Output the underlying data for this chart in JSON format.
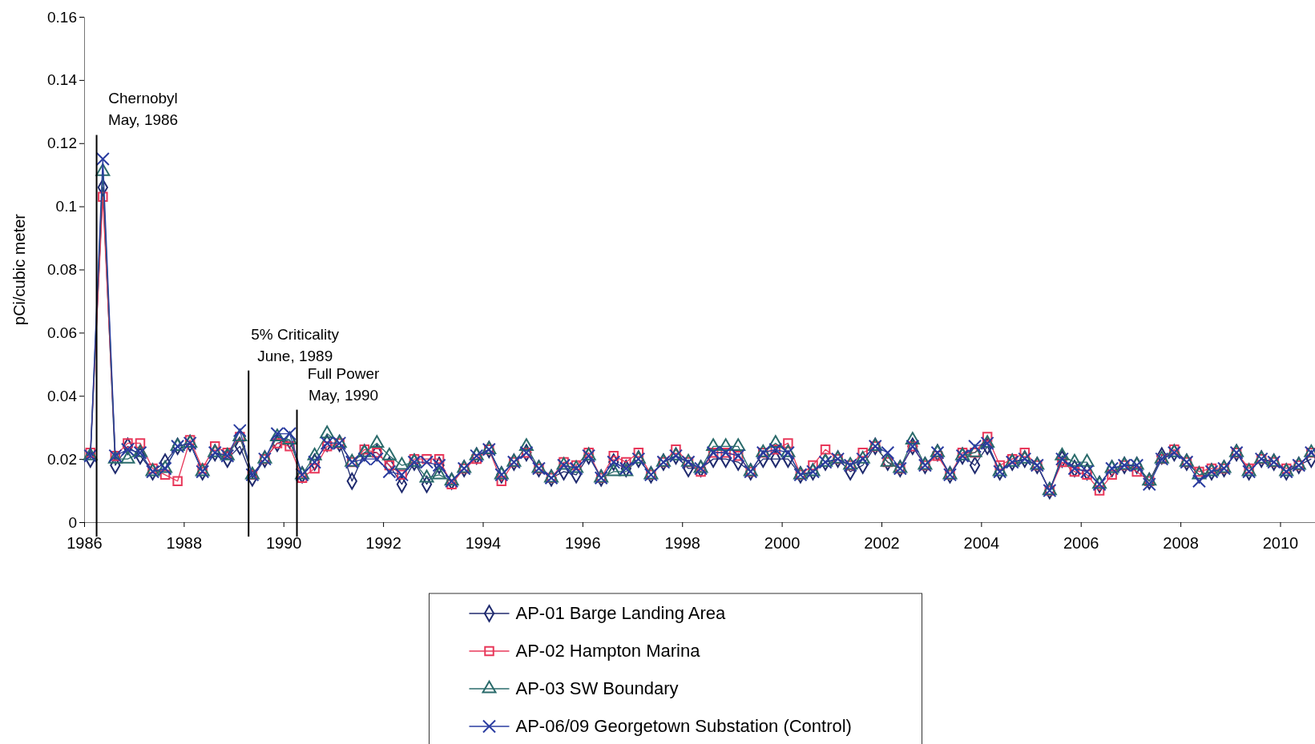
{
  "chart_data": {
    "type": "line",
    "ylabel": "pCi/cubic meter",
    "x": [
      1986.125,
      1986.375,
      1986.625,
      1986.875,
      1987.125,
      1987.375,
      1987.625,
      1987.875,
      1988.125,
      1988.375,
      1988.625,
      1988.875,
      1989.125,
      1989.375,
      1989.625,
      1989.875,
      1990.125,
      1990.375,
      1990.625,
      1990.875,
      1991.125,
      1991.375,
      1991.625,
      1991.875,
      1992.125,
      1992.375,
      1992.625,
      1992.875,
      1993.125,
      1993.375,
      1993.625,
      1993.875,
      1994.125,
      1994.375,
      1994.625,
      1994.875,
      1995.125,
      1995.375,
      1995.625,
      1995.875,
      1996.125,
      1996.375,
      1996.625,
      1996.875,
      1997.125,
      1997.375,
      1997.625,
      1997.875,
      1998.125,
      1998.375,
      1998.625,
      1998.875,
      1999.125,
      1999.375,
      1999.625,
      1999.875,
      2000.125,
      2000.375,
      2000.625,
      2000.875,
      2001.125,
      2001.375,
      2001.625,
      2001.875,
      2002.125,
      2002.375,
      2002.625,
      2002.875,
      2003.125,
      2003.375,
      2003.625,
      2003.875,
      2004.125,
      2004.375,
      2004.625,
      2004.875,
      2005.125,
      2005.375,
      2005.625,
      2005.875,
      2006.125,
      2006.375,
      2006.625,
      2006.875,
      2007.125,
      2007.375,
      2007.625,
      2007.875,
      2008.125,
      2008.375,
      2008.625,
      2008.875,
      2009.125,
      2009.375,
      2009.625,
      2009.875,
      2010.125,
      2010.375,
      2010.625
    ],
    "series": [
      {
        "name": "AP-01 Barge Landing Area",
        "color": "#1f2a6e",
        "marker": "diamond",
        "values": [
          0.02,
          0.106,
          0.018,
          0.024,
          0.021,
          0.016,
          0.019,
          0.024,
          0.025,
          0.016,
          0.022,
          0.02,
          0.024,
          0.014,
          0.02,
          0.025,
          0.026,
          0.015,
          0.019,
          0.025,
          0.025,
          0.013,
          0.022,
          0.022,
          0.018,
          0.012,
          0.019,
          0.012,
          0.018,
          0.013,
          0.017,
          0.021,
          0.023,
          0.015,
          0.019,
          0.022,
          0.017,
          0.014,
          0.016,
          0.015,
          0.021,
          0.014,
          0.019,
          0.017,
          0.02,
          0.015,
          0.019,
          0.021,
          0.017,
          0.017,
          0.02,
          0.02,
          0.019,
          0.016,
          0.02,
          0.02,
          0.02,
          0.015,
          0.016,
          0.019,
          0.02,
          0.016,
          0.018,
          0.024,
          0.019,
          0.017,
          0.024,
          0.018,
          0.022,
          0.015,
          0.021,
          0.018,
          0.024,
          0.016,
          0.019,
          0.02,
          0.018,
          0.01,
          0.02,
          0.017,
          0.016,
          0.012,
          0.017,
          0.018,
          0.018,
          0.013,
          0.021,
          0.022,
          0.019,
          0.015,
          0.016,
          0.017,
          0.022,
          0.016,
          0.02,
          0.019,
          0.016,
          0.018,
          0.02
        ]
      },
      {
        "name": "AP-02 Hampton Marina",
        "color": "#e8385a",
        "marker": "square",
        "values": [
          0.022,
          0.103,
          0.021,
          0.025,
          0.025,
          0.017,
          0.015,
          0.013,
          0.026,
          0.017,
          0.024,
          0.022,
          0.027,
          0.015,
          0.02,
          0.025,
          0.024,
          0.014,
          0.017,
          0.024,
          0.025,
          0.019,
          0.023,
          0.022,
          0.018,
          0.015,
          0.02,
          0.02,
          0.02,
          0.012,
          0.017,
          0.02,
          0.023,
          0.013,
          0.019,
          0.022,
          0.017,
          0.014,
          0.019,
          0.018,
          0.022,
          0.014,
          0.021,
          0.019,
          0.022,
          0.015,
          0.019,
          0.023,
          0.019,
          0.016,
          0.022,
          0.022,
          0.021,
          0.016,
          0.022,
          0.023,
          0.025,
          0.015,
          0.018,
          0.023,
          0.02,
          0.018,
          0.022,
          0.024,
          0.019,
          0.017,
          0.024,
          0.018,
          0.021,
          0.015,
          0.022,
          0.022,
          0.027,
          0.018,
          0.02,
          0.022,
          0.018,
          0.01,
          0.019,
          0.016,
          0.015,
          0.01,
          0.015,
          0.018,
          0.016,
          0.013,
          0.02,
          0.023,
          0.019,
          0.016,
          0.017,
          0.017,
          0.022,
          0.017,
          0.02,
          0.019,
          0.017,
          0.018,
          0.022
        ]
      },
      {
        "name": "AP-03 SW Boundary",
        "color": "#2a6b6b",
        "marker": "triangle",
        "values": [
          0.021,
          0.111,
          0.02,
          0.02,
          0.022,
          0.016,
          0.017,
          0.024,
          0.025,
          0.016,
          0.022,
          0.021,
          0.027,
          0.015,
          0.02,
          0.027,
          0.026,
          0.015,
          0.021,
          0.028,
          0.025,
          0.019,
          0.022,
          0.025,
          0.021,
          0.018,
          0.019,
          0.014,
          0.015,
          0.013,
          0.017,
          0.021,
          0.023,
          0.015,
          0.019,
          0.024,
          0.017,
          0.014,
          0.018,
          0.017,
          0.021,
          0.014,
          0.016,
          0.016,
          0.02,
          0.015,
          0.019,
          0.021,
          0.019,
          0.017,
          0.024,
          0.024,
          0.024,
          0.016,
          0.022,
          0.025,
          0.022,
          0.015,
          0.016,
          0.019,
          0.02,
          0.018,
          0.02,
          0.024,
          0.019,
          0.017,
          0.026,
          0.018,
          0.022,
          0.015,
          0.021,
          0.022,
          0.025,
          0.016,
          0.019,
          0.02,
          0.018,
          0.01,
          0.021,
          0.019,
          0.019,
          0.012,
          0.017,
          0.018,
          0.018,
          0.013,
          0.02,
          0.022,
          0.019,
          0.015,
          0.016,
          0.017,
          0.022,
          0.016,
          0.02,
          0.019,
          0.016,
          0.018,
          0.022
        ]
      },
      {
        "name": "AP-06/09 Georgetown Substation (Control)",
        "color": "#2a3ca0",
        "marker": "cross",
        "values": [
          0.021,
          0.115,
          0.021,
          0.023,
          0.022,
          0.016,
          0.017,
          0.024,
          0.025,
          0.016,
          0.022,
          0.021,
          0.029,
          0.015,
          0.02,
          0.028,
          0.028,
          0.015,
          0.019,
          0.025,
          0.025,
          0.019,
          0.02,
          0.02,
          0.016,
          0.015,
          0.019,
          0.019,
          0.018,
          0.013,
          0.017,
          0.021,
          0.023,
          0.015,
          0.019,
          0.022,
          0.017,
          0.014,
          0.018,
          0.017,
          0.021,
          0.014,
          0.019,
          0.017,
          0.02,
          0.015,
          0.019,
          0.021,
          0.019,
          0.017,
          0.022,
          0.022,
          0.021,
          0.016,
          0.022,
          0.023,
          0.022,
          0.015,
          0.016,
          0.019,
          0.02,
          0.018,
          0.02,
          0.024,
          0.022,
          0.017,
          0.024,
          0.018,
          0.022,
          0.015,
          0.021,
          0.024,
          0.025,
          0.016,
          0.019,
          0.02,
          0.018,
          0.01,
          0.02,
          0.017,
          0.016,
          0.012,
          0.017,
          0.018,
          0.018,
          0.012,
          0.02,
          0.022,
          0.019,
          0.013,
          0.016,
          0.017,
          0.022,
          0.016,
          0.02,
          0.019,
          0.016,
          0.018,
          0.022
        ]
      }
    ],
    "xlim": [
      1986,
      2010.7
    ],
    "xticks": [
      1986,
      1988,
      1990,
      1992,
      1994,
      1996,
      1998,
      2000,
      2002,
      2004,
      2006,
      2008,
      2010
    ],
    "ylim": [
      0,
      0.16
    ],
    "yticks": [
      0,
      0.02,
      0.04,
      0.06,
      0.08,
      0.1,
      0.12,
      0.14,
      0.16
    ],
    "grid": false,
    "legend": "bottom",
    "ref_lines": [
      {
        "axis": "x",
        "value": 1986.25,
        "label": "Chernobyl\nMay, 1986",
        "color": "#000000"
      },
      {
        "axis": "x",
        "value": 1989.3,
        "label": "5% Criticality\nJune, 1989",
        "color": "#000000"
      },
      {
        "axis": "x",
        "value": 1990.27,
        "label": "Full Power\nMay, 1990",
        "color": "#000000"
      }
    ]
  }
}
